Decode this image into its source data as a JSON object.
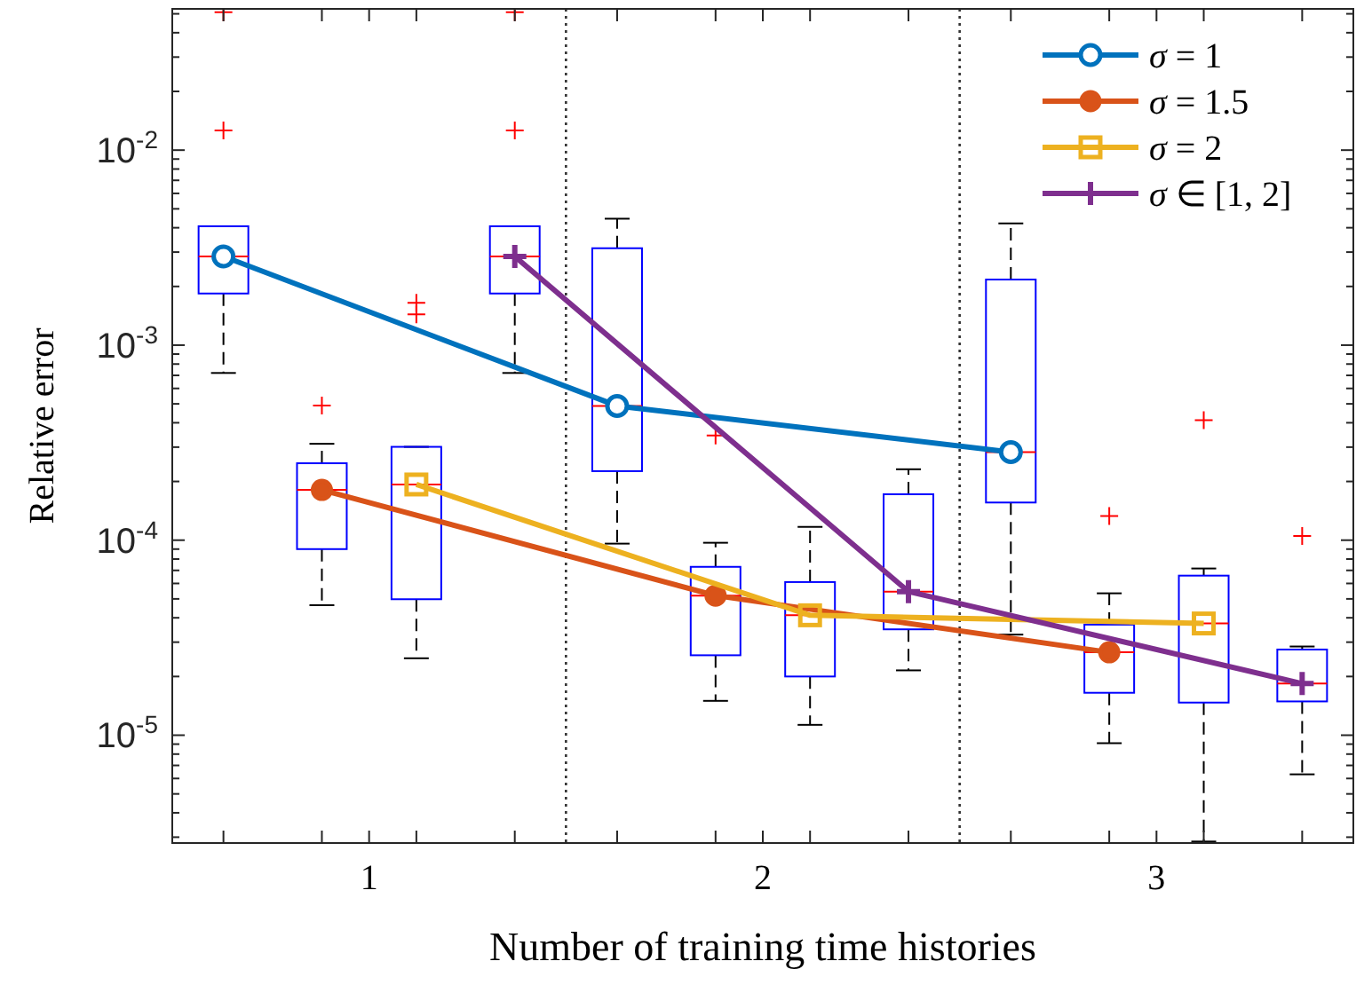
{
  "chart_data": {
    "type": "box",
    "xlabel": "Number of training time histories",
    "ylabel": "Relative error",
    "log": "y",
    "grid": false,
    "legend": "top right",
    "xlim": [
      0.5,
      3.5
    ],
    "ylim": [
      2.8e-06,
      0.053
    ],
    "xticks": [
      {
        "value": 0.63,
        "label": null
      },
      {
        "value": 0.88,
        "label": null
      },
      {
        "value": 1,
        "label": "1"
      },
      {
        "value": 1.12,
        "label": null
      },
      {
        "value": 1.37,
        "label": null
      },
      {
        "value": 1.63,
        "label": null
      },
      {
        "value": 1.88,
        "label": null
      },
      {
        "value": 2,
        "label": "2"
      },
      {
        "value": 2.12,
        "label": null
      },
      {
        "value": 2.37,
        "label": null
      },
      {
        "value": 2.63,
        "label": null
      },
      {
        "value": 2.88,
        "label": null
      },
      {
        "value": 3,
        "label": "3"
      },
      {
        "value": 3.12,
        "label": null
      },
      {
        "value": 3.37,
        "label": null
      }
    ],
    "yticks": [
      {
        "value": 3e-06,
        "label": null
      },
      {
        "value": 4e-06,
        "label": null
      },
      {
        "value": 5e-06,
        "label": null
      },
      {
        "value": 6e-06,
        "label": null
      },
      {
        "value": 7e-06,
        "label": null
      },
      {
        "value": 8e-06,
        "label": null
      },
      {
        "value": 9e-06,
        "label": null
      },
      {
        "value": 1e-05,
        "label": "10$^{-5}$"
      },
      {
        "value": 2e-05,
        "label": null
      },
      {
        "value": 3e-05,
        "label": null
      },
      {
        "value": 4e-05,
        "label": null
      },
      {
        "value": 5e-05,
        "label": null
      },
      {
        "value": 6e-05,
        "label": null
      },
      {
        "value": 7e-05,
        "label": null
      },
      {
        "value": 8e-05,
        "label": null
      },
      {
        "value": 9e-05,
        "label": null
      },
      {
        "value": 0.0001,
        "label": "10$^{-4}$"
      },
      {
        "value": 0.0002,
        "label": null
      },
      {
        "value": 0.0003,
        "label": null
      },
      {
        "value": 0.0004,
        "label": null
      },
      {
        "value": 0.0005,
        "label": null
      },
      {
        "value": 0.0006,
        "label": null
      },
      {
        "value": 0.0007,
        "label": null
      },
      {
        "value": 0.0008,
        "label": null
      },
      {
        "value": 0.0009,
        "label": null
      },
      {
        "value": 0.001,
        "label": "10$^{-3}$"
      },
      {
        "value": 0.002,
        "label": null
      },
      {
        "value": 0.003,
        "label": null
      },
      {
        "value": 0.004,
        "label": null
      },
      {
        "value": 0.005,
        "label": null
      },
      {
        "value": 0.006,
        "label": null
      },
      {
        "value": 0.007,
        "label": null
      },
      {
        "value": 0.008,
        "label": null
      },
      {
        "value": 0.009,
        "label": null
      },
      {
        "value": 0.01,
        "label": "10$^{-2}$"
      },
      {
        "value": 0.02,
        "label": null
      },
      {
        "value": 0.03,
        "label": null
      },
      {
        "value": 0.04,
        "label": null
      },
      {
        "value": 0.05,
        "label": null
      }
    ],
    "ref_lines": [
      {
        "axis": "x",
        "value": 1.5,
        "line_style": "dotted",
        "color": "#333333"
      },
      {
        "axis": "x",
        "value": 2.5,
        "line_style": "dotted",
        "color": "#333333"
      }
    ],
    "series": [
      {
        "color": "#0000ff",
        "x": [
          0.63,
          0.88,
          1.12,
          1.37,
          1.63,
          1.88,
          2.12,
          2.37,
          2.63,
          2.88,
          3.12,
          3.37
        ],
        "boxes": [
          {
            "low": 0.00072,
            "q1": 0.00184,
            "median": 0.00285,
            "q3": 0.00407,
            "high": 0.00407,
            "outliers": [
              0.051,
              0.0126
            ]
          },
          {
            "low": 4.64e-05,
            "q1": 9e-05,
            "median": 0.000181,
            "q3": 0.000248,
            "high": 0.000312,
            "outliers": [
              0.00049
            ]
          },
          {
            "low": 2.48e-05,
            "q1": 4.98e-05,
            "median": 0.000193,
            "q3": 0.000301,
            "high": 0.000301,
            "outliers": [
              0.00165,
              0.00144
            ]
          },
          {
            "low": 0.00072,
            "q1": 0.00184,
            "median": 0.00285,
            "q3": 0.00407,
            "high": 0.00407,
            "outliers": [
              0.051,
              0.0126
            ]
          },
          {
            "low": 9.6e-05,
            "q1": 0.000226,
            "median": 0.000488,
            "q3": 0.00314,
            "high": 0.00445
          },
          {
            "low": 1.5e-05,
            "q1": 2.57e-05,
            "median": 5.2e-05,
            "q3": 7.3e-05,
            "high": 9.7e-05,
            "outliers": [
              0.000344
            ]
          },
          {
            "low": 1.13e-05,
            "q1": 2e-05,
            "median": 4.12e-05,
            "q3": 6.1e-05,
            "high": 0.000117
          },
          {
            "low": 2.15e-05,
            "q1": 3.49e-05,
            "median": 5.45e-05,
            "q3": 0.000172,
            "high": 0.000231
          },
          {
            "low": 3.28e-05,
            "q1": 0.000156,
            "median": 0.000283,
            "q3": 0.00217,
            "high": 0.00421
          },
          {
            "low": 9.1e-06,
            "q1": 1.65e-05,
            "median": 2.66e-05,
            "q3": 3.69e-05,
            "high": 5.34e-05,
            "outliers": [
              0.000133
            ]
          },
          {
            "low": 2.85e-06,
            "q1": 1.47e-05,
            "median": 3.74e-05,
            "q3": 6.58e-05,
            "high": 7.16e-05,
            "outliers": [
              0.000412
            ]
          },
          {
            "low": 6.3e-06,
            "q1": 1.49e-05,
            "median": 1.84e-05,
            "q3": 2.75e-05,
            "high": 2.85e-05,
            "outliers": [
              0.000105
            ]
          }
        ]
      },
      {
        "type": "line",
        "name": "σ = 1",
        "color": "#0072bd",
        "marker": "circle",
        "x": [
          0.63,
          1.63,
          2.63
        ],
        "values": [
          0.00285,
          0.000488,
          0.000283
        ]
      },
      {
        "type": "line",
        "name": "σ = 1.5",
        "color": "#d95319",
        "marker": "circle",
        "x": [
          0.88,
          1.88,
          2.88
        ],
        "values": [
          0.000181,
          5.2e-05,
          2.66e-05
        ]
      },
      {
        "type": "line",
        "name": "σ = 2",
        "color": "#edb120",
        "marker": "square",
        "x": [
          1.12,
          2.12,
          3.12
        ],
        "values": [
          0.000193,
          4.12e-05,
          3.74e-05
        ]
      },
      {
        "type": "line",
        "name": "σ ∈ [1, 2]",
        "color": "#7e2f8e",
        "marker": "cross",
        "x": [
          1.37,
          2.37,
          3.37
        ],
        "values": [
          0.00285,
          5.45e-05,
          1.84e-05
        ]
      }
    ]
  }
}
